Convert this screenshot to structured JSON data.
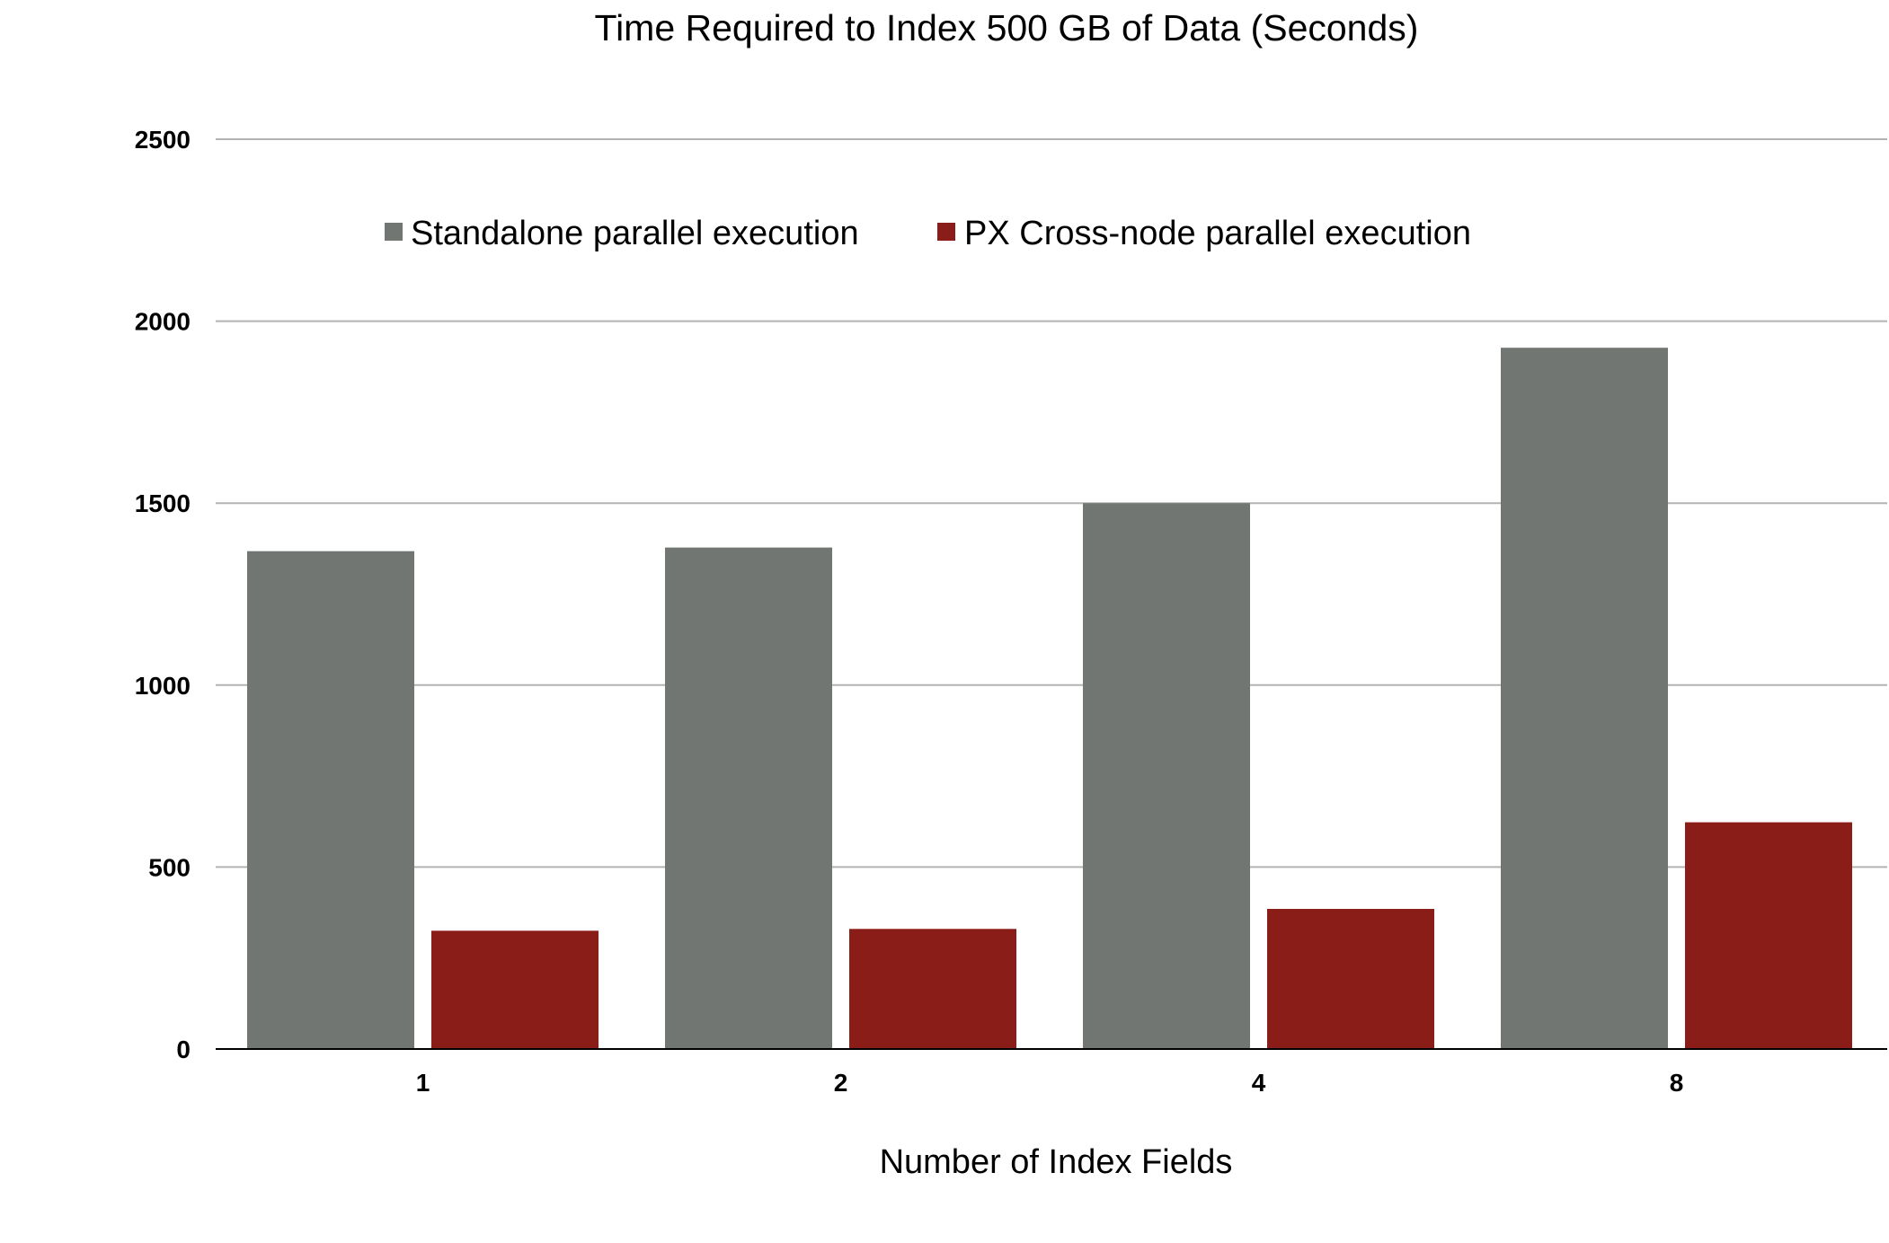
{
  "chart_data": {
    "type": "bar",
    "title": "Time Required to Index 500 GB of Data (Seconds)",
    "xlabel": "Number of Index Fields",
    "ylabel": "",
    "categories": [
      "1",
      "2",
      "4",
      "8"
    ],
    "series": [
      {
        "name": "Standalone parallel execution",
        "color": "#717673",
        "values": [
          1368,
          1378,
          1500,
          1927
        ]
      },
      {
        "name": "PX Cross-node parallel execution",
        "color": "#8b1d18",
        "values": [
          325,
          330,
          385,
          623
        ]
      }
    ],
    "ylim": [
      0,
      2500
    ],
    "yticks": [
      0,
      500,
      1000,
      1500,
      2000,
      2500
    ],
    "grid": true,
    "legend_position": "top-center"
  }
}
